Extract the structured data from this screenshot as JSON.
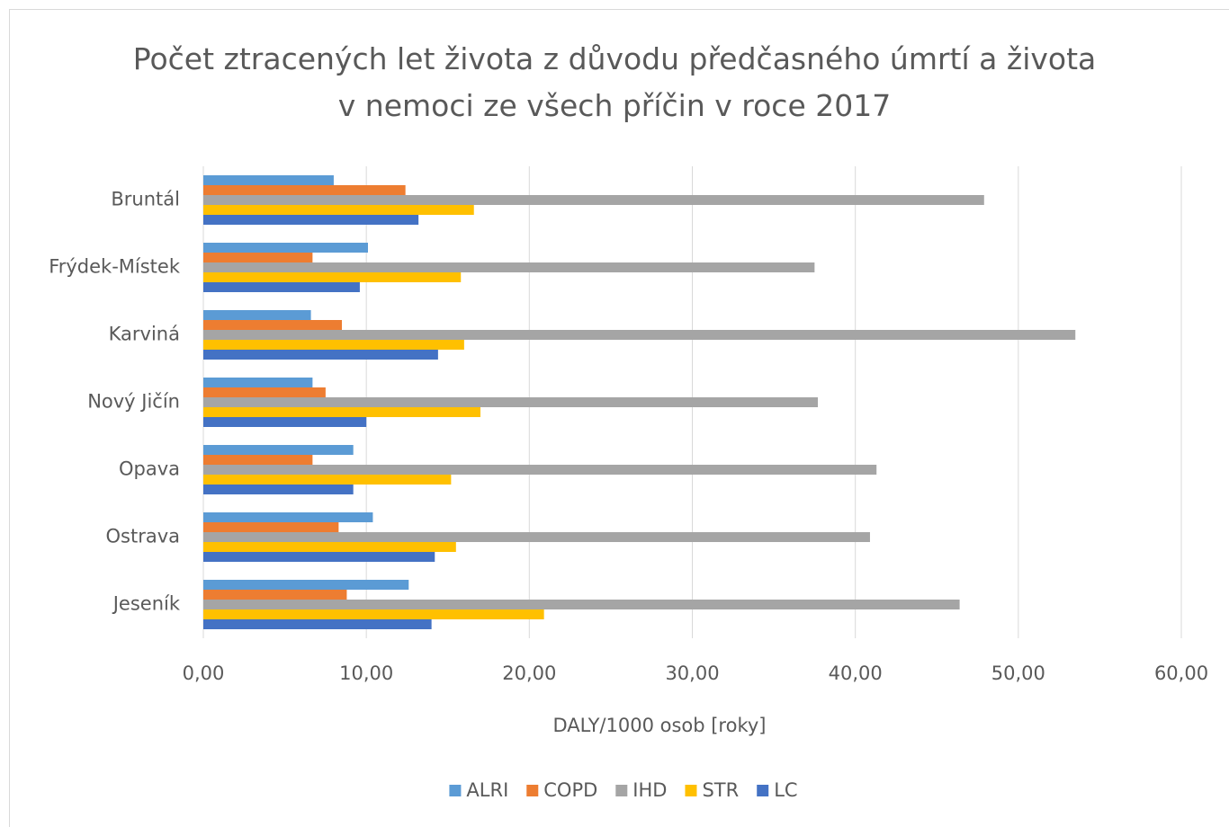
{
  "chart_data": {
    "type": "bar",
    "orientation": "horizontal",
    "title": "Počet ztracených let života z důvodu předčasného úmrtí a života v nemoci ze všech příčin v roce 2017",
    "x_label": "DALY/1000 osob [roky]",
    "categories": [
      "Bruntál",
      "Frýdek-Místek",
      "Karviná",
      "Nový Jičín",
      "Opava",
      "Ostrava",
      "Jeseník"
    ],
    "series": [
      {
        "name": "ALRI",
        "color": "#5b9bd5",
        "values": [
          8.0,
          10.1,
          6.6,
          6.7,
          9.2,
          10.4,
          12.6
        ]
      },
      {
        "name": "COPD",
        "color": "#ed7d31",
        "values": [
          12.4,
          6.7,
          8.5,
          7.5,
          6.7,
          8.3,
          8.8
        ]
      },
      {
        "name": "IHD",
        "color": "#a5a5a5",
        "values": [
          47.9,
          37.5,
          53.5,
          37.7,
          41.3,
          40.9,
          46.4
        ]
      },
      {
        "name": "STR",
        "color": "#ffc000",
        "values": [
          16.6,
          15.8,
          16.0,
          17.0,
          15.2,
          15.5,
          20.9
        ]
      },
      {
        "name": "LC",
        "color": "#4472c4",
        "values": [
          13.2,
          9.6,
          14.4,
          10.0,
          9.2,
          14.2,
          14.0
        ]
      }
    ],
    "xlim": [
      0,
      60
    ],
    "xticks": [
      {
        "value": 0,
        "label": "0,00"
      },
      {
        "value": 10,
        "label": "10,00"
      },
      {
        "value": 20,
        "label": "20,00"
      },
      {
        "value": 30,
        "label": "30,00"
      },
      {
        "value": 40,
        "label": "40,00"
      },
      {
        "value": 50,
        "label": "50,00"
      },
      {
        "value": 60,
        "label": "60,00"
      }
    ],
    "grid": true,
    "legend": "bottom"
  }
}
